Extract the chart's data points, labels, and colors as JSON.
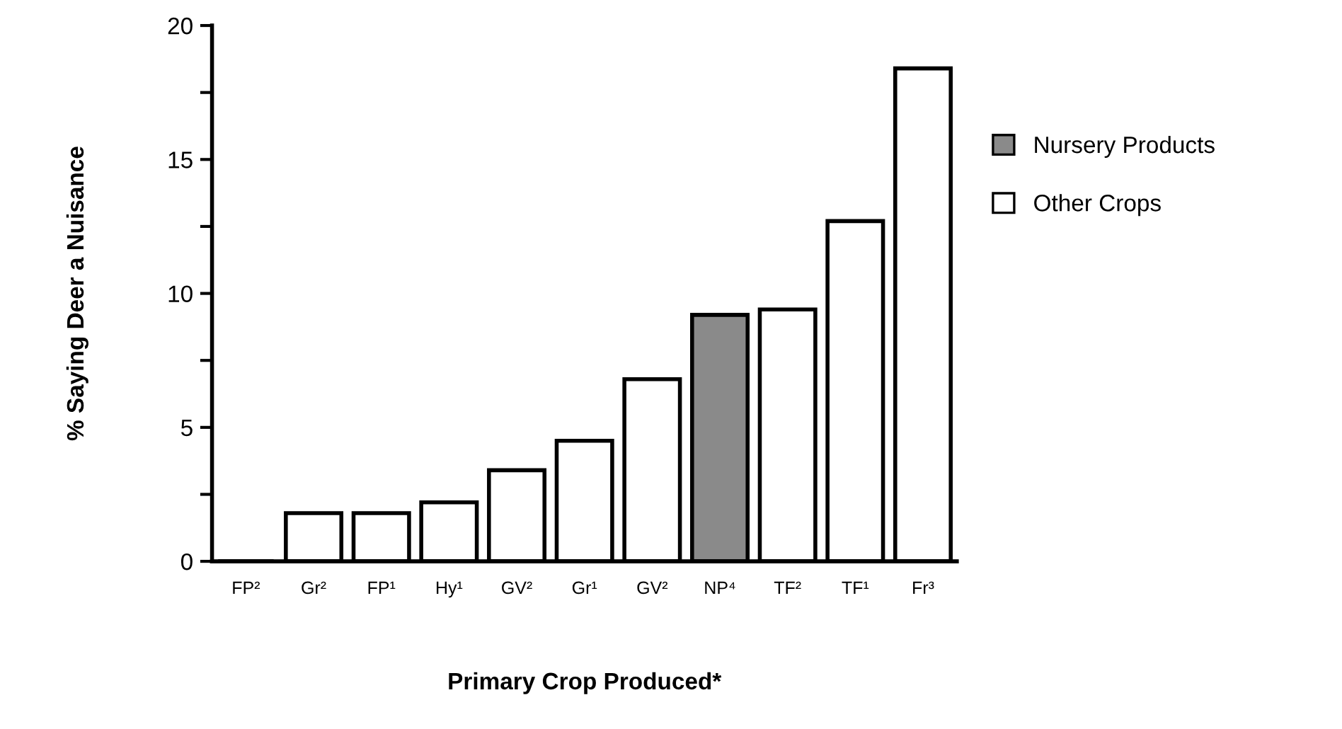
{
  "chart_data": {
    "type": "bar",
    "xlabel": "Primary Crop Produced*",
    "ylabel": "% Saying Deer a Nuisance",
    "categories": [
      "FP²",
      "Gr²",
      "FP¹",
      "Hy¹",
      "GV²",
      "Gr¹",
      "GV²",
      "NP⁴",
      "TF²",
      "TF¹",
      "Fr³"
    ],
    "series": [
      {
        "name": "Nursery Products",
        "color": "#8a8a8a",
        "values": [
          null,
          null,
          null,
          null,
          null,
          null,
          null,
          9.2,
          null,
          null,
          null
        ]
      },
      {
        "name": "Other Crops",
        "color": "#ffffff",
        "values": [
          0,
          1.8,
          1.8,
          2.2,
          3.4,
          4.5,
          6.8,
          null,
          9.4,
          12.7,
          18.4
        ]
      }
    ],
    "ylim": [
      0,
      20
    ],
    "yticks": [
      0,
      {
        "value": 2.5,
        "label": null
      },
      5,
      {
        "value": 7.5,
        "label": null
      },
      10,
      {
        "value": 12.5,
        "label": null
      },
      15,
      {
        "value": 17.5,
        "label": null
      },
      20
    ],
    "grid": false,
    "legend": "right"
  }
}
